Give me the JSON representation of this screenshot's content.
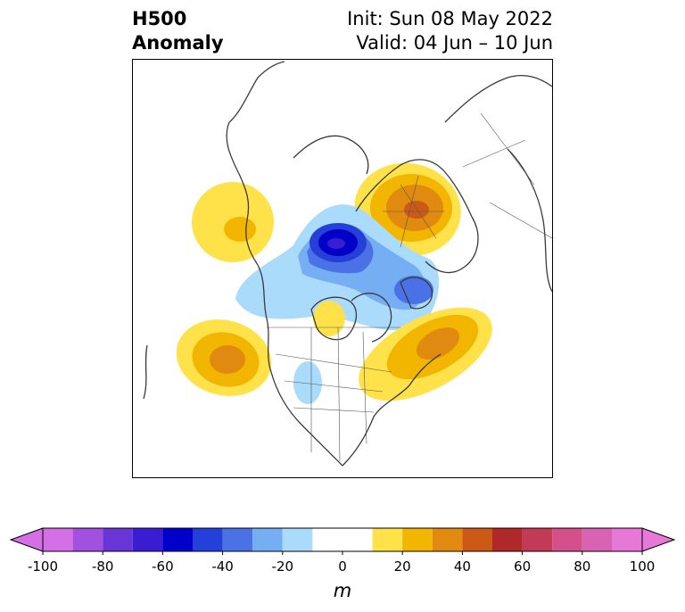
{
  "header": {
    "title_line1": "H500",
    "title_line2": "Anomaly",
    "init_text": "Init: Sun 08 May 2022",
    "valid_text": "Valid: 04 Jun – 10 Jun"
  },
  "colorbar": {
    "units": "m",
    "tick_labels": [
      "-100",
      "-80",
      "-60",
      "-40",
      "-20",
      "0",
      "20",
      "40",
      "60",
      "80",
      "100"
    ],
    "levels": [
      -100,
      -90,
      -80,
      -70,
      -60,
      -50,
      -40,
      -30,
      -20,
      -10,
      10,
      20,
      30,
      40,
      50,
      60,
      70,
      80,
      90,
      100
    ],
    "colors": [
      "#d56fe6",
      "#a250e0",
      "#6a35d6",
      "#3a1dd1",
      "#0000c8",
      "#2440d8",
      "#4a72e6",
      "#75aef2",
      "#aadbfb",
      "#ffffff",
      "#ffe24a",
      "#f2b500",
      "#e08a10",
      "#cc5a16",
      "#b02828",
      "#c23a55",
      "#d3508a",
      "#d863b2",
      "#e878d8"
    ],
    "extend": "both"
  },
  "map": {
    "projection": "north-polar-stereographic",
    "coastline_color": "#3a3a3a",
    "anomaly_features": [
      {
        "label": "negative anomaly over Arctic / Siberia",
        "peak_m": -60
      },
      {
        "label": "positive anomaly over Scandinavia / NW Russia",
        "peak_m": 40
      },
      {
        "label": "positive anomaly over Bering region",
        "peak_m": 30
      },
      {
        "label": "positive anomaly over NE Pacific",
        "peak_m": 40
      },
      {
        "label": "positive anomaly over NW Atlantic",
        "peak_m": 40
      },
      {
        "label": "negative anomaly over Greenland / Baffin",
        "peak_m": -30
      },
      {
        "label": "negative anomaly over central North America",
        "peak_m": -20
      }
    ]
  }
}
